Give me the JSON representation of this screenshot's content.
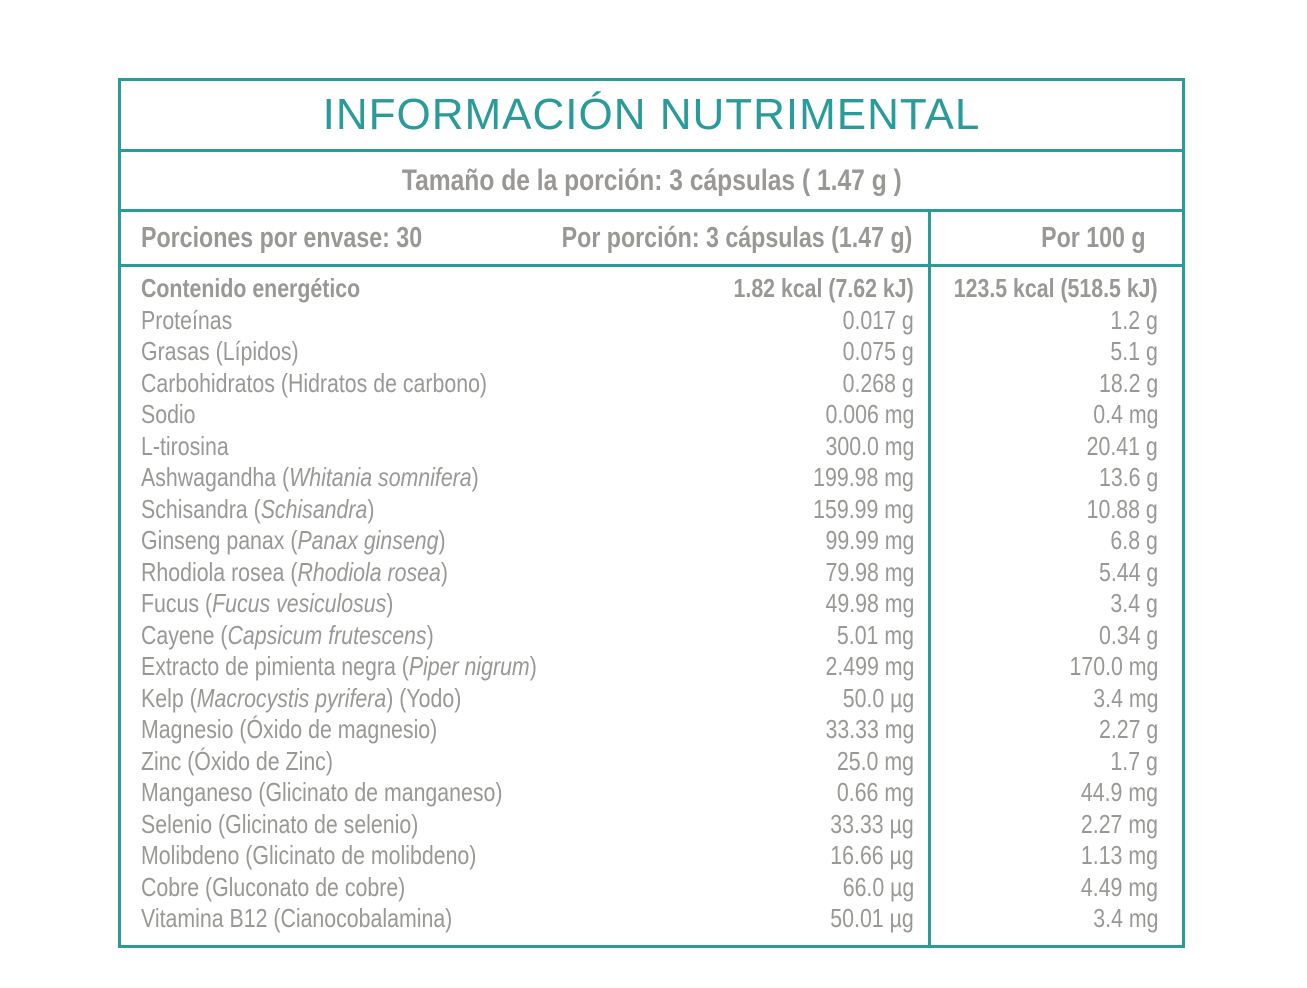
{
  "title": "INFORMACIÓN NUTRIMENTAL",
  "serving_size": "Tamaño de la porción: 3 cápsulas ( 1.47 g )",
  "header": {
    "servings_per_container": "Porciones por envase: 30",
    "per_serving": "Por porción: 3 cápsulas (1.47 g)",
    "per_100g": "Por 100 g"
  },
  "colors": {
    "accent": "#2a9b9b",
    "text": "#999895"
  },
  "rows": [
    {
      "name": "Contenido energético",
      "latin": "",
      "suffix": "",
      "per_serving": "1.82 kcal (7.62 kJ)",
      "per_100g": "123.5 kcal (518.5 kJ)",
      "bold": true
    },
    {
      "name": "Proteínas",
      "latin": "",
      "suffix": "",
      "per_serving": "0.017 g",
      "per_100g": "1.2 g"
    },
    {
      "name": "Grasas (Lípidos)",
      "latin": "",
      "suffix": "",
      "per_serving": "0.075 g",
      "per_100g": "5.1 g"
    },
    {
      "name": "Carbohidratos (Hidratos de carbono)",
      "latin": "",
      "suffix": "",
      "per_serving": "0.268 g",
      "per_100g": "18.2 g"
    },
    {
      "name": "Sodio",
      "latin": "",
      "suffix": "",
      "per_serving": "0.006 mg",
      "per_100g": "0.4 mg"
    },
    {
      "name": "L-tirosina",
      "latin": "",
      "suffix": "",
      "per_serving": "300.0 mg",
      "per_100g": "20.41 g"
    },
    {
      "name": "Ashwagandha (",
      "latin": "Whitania somnifera",
      "suffix": ")",
      "per_serving": "199.98 mg",
      "per_100g": "13.6 g"
    },
    {
      "name": "Schisandra (",
      "latin": "Schisandra",
      "suffix": ")",
      "per_serving": "159.99 mg",
      "per_100g": "10.88 g"
    },
    {
      "name": "Ginseng panax (",
      "latin": "Panax ginseng",
      "suffix": ")",
      "per_serving": "99.99 mg",
      "per_100g": "6.8 g"
    },
    {
      "name": "Rhodiola rosea (",
      "latin": "Rhodiola rosea",
      "suffix": ")",
      "per_serving": "79.98 mg",
      "per_100g": "5.44 g"
    },
    {
      "name": "Fucus (",
      "latin": "Fucus vesiculosus",
      "suffix": ")",
      "per_serving": "49.98 mg",
      "per_100g": "3.4 g"
    },
    {
      "name": "Cayene (",
      "latin": "Capsicum frutescens",
      "suffix": ")",
      "per_serving": "5.01 mg",
      "per_100g": "0.34 g"
    },
    {
      "name": "Extracto de pimienta negra (",
      "latin": "Piper nigrum",
      "suffix": ")",
      "per_serving": "2.499 mg",
      "per_100g": "170.0 mg"
    },
    {
      "name": "Kelp (",
      "latin": "Macrocystis pyrifera",
      "suffix": ") (Yodo)",
      "per_serving": "50.0 µg",
      "per_100g": "3.4 mg"
    },
    {
      "name": "Magnesio (Óxido de magnesio)",
      "latin": "",
      "suffix": "",
      "per_serving": "33.33 mg",
      "per_100g": "2.27 g"
    },
    {
      "name": "Zinc (Óxido de Zinc)",
      "latin": "",
      "suffix": "",
      "per_serving": "25.0 mg",
      "per_100g": "1.7 g"
    },
    {
      "name": "Manganeso (Glicinato de manganeso)",
      "latin": "",
      "suffix": "",
      "per_serving": "0.66 mg",
      "per_100g": "44.9 mg"
    },
    {
      "name": "Selenio (Glicinato de selenio)",
      "latin": "",
      "suffix": "",
      "per_serving": "33.33 µg",
      "per_100g": "2.27 mg"
    },
    {
      "name": "Molibdeno (Glicinato de molibdeno)",
      "latin": "",
      "suffix": "",
      "per_serving": "16.66 µg",
      "per_100g": "1.13 mg"
    },
    {
      "name": "Cobre (Gluconato de cobre)",
      "latin": "",
      "suffix": "",
      "per_serving": "66.0 µg",
      "per_100g": "4.49 mg"
    },
    {
      "name": "Vitamina B12 (Cianocobalamina)",
      "latin": "",
      "suffix": "",
      "per_serving": "50.01 µg",
      "per_100g": "3.4 mg"
    }
  ]
}
